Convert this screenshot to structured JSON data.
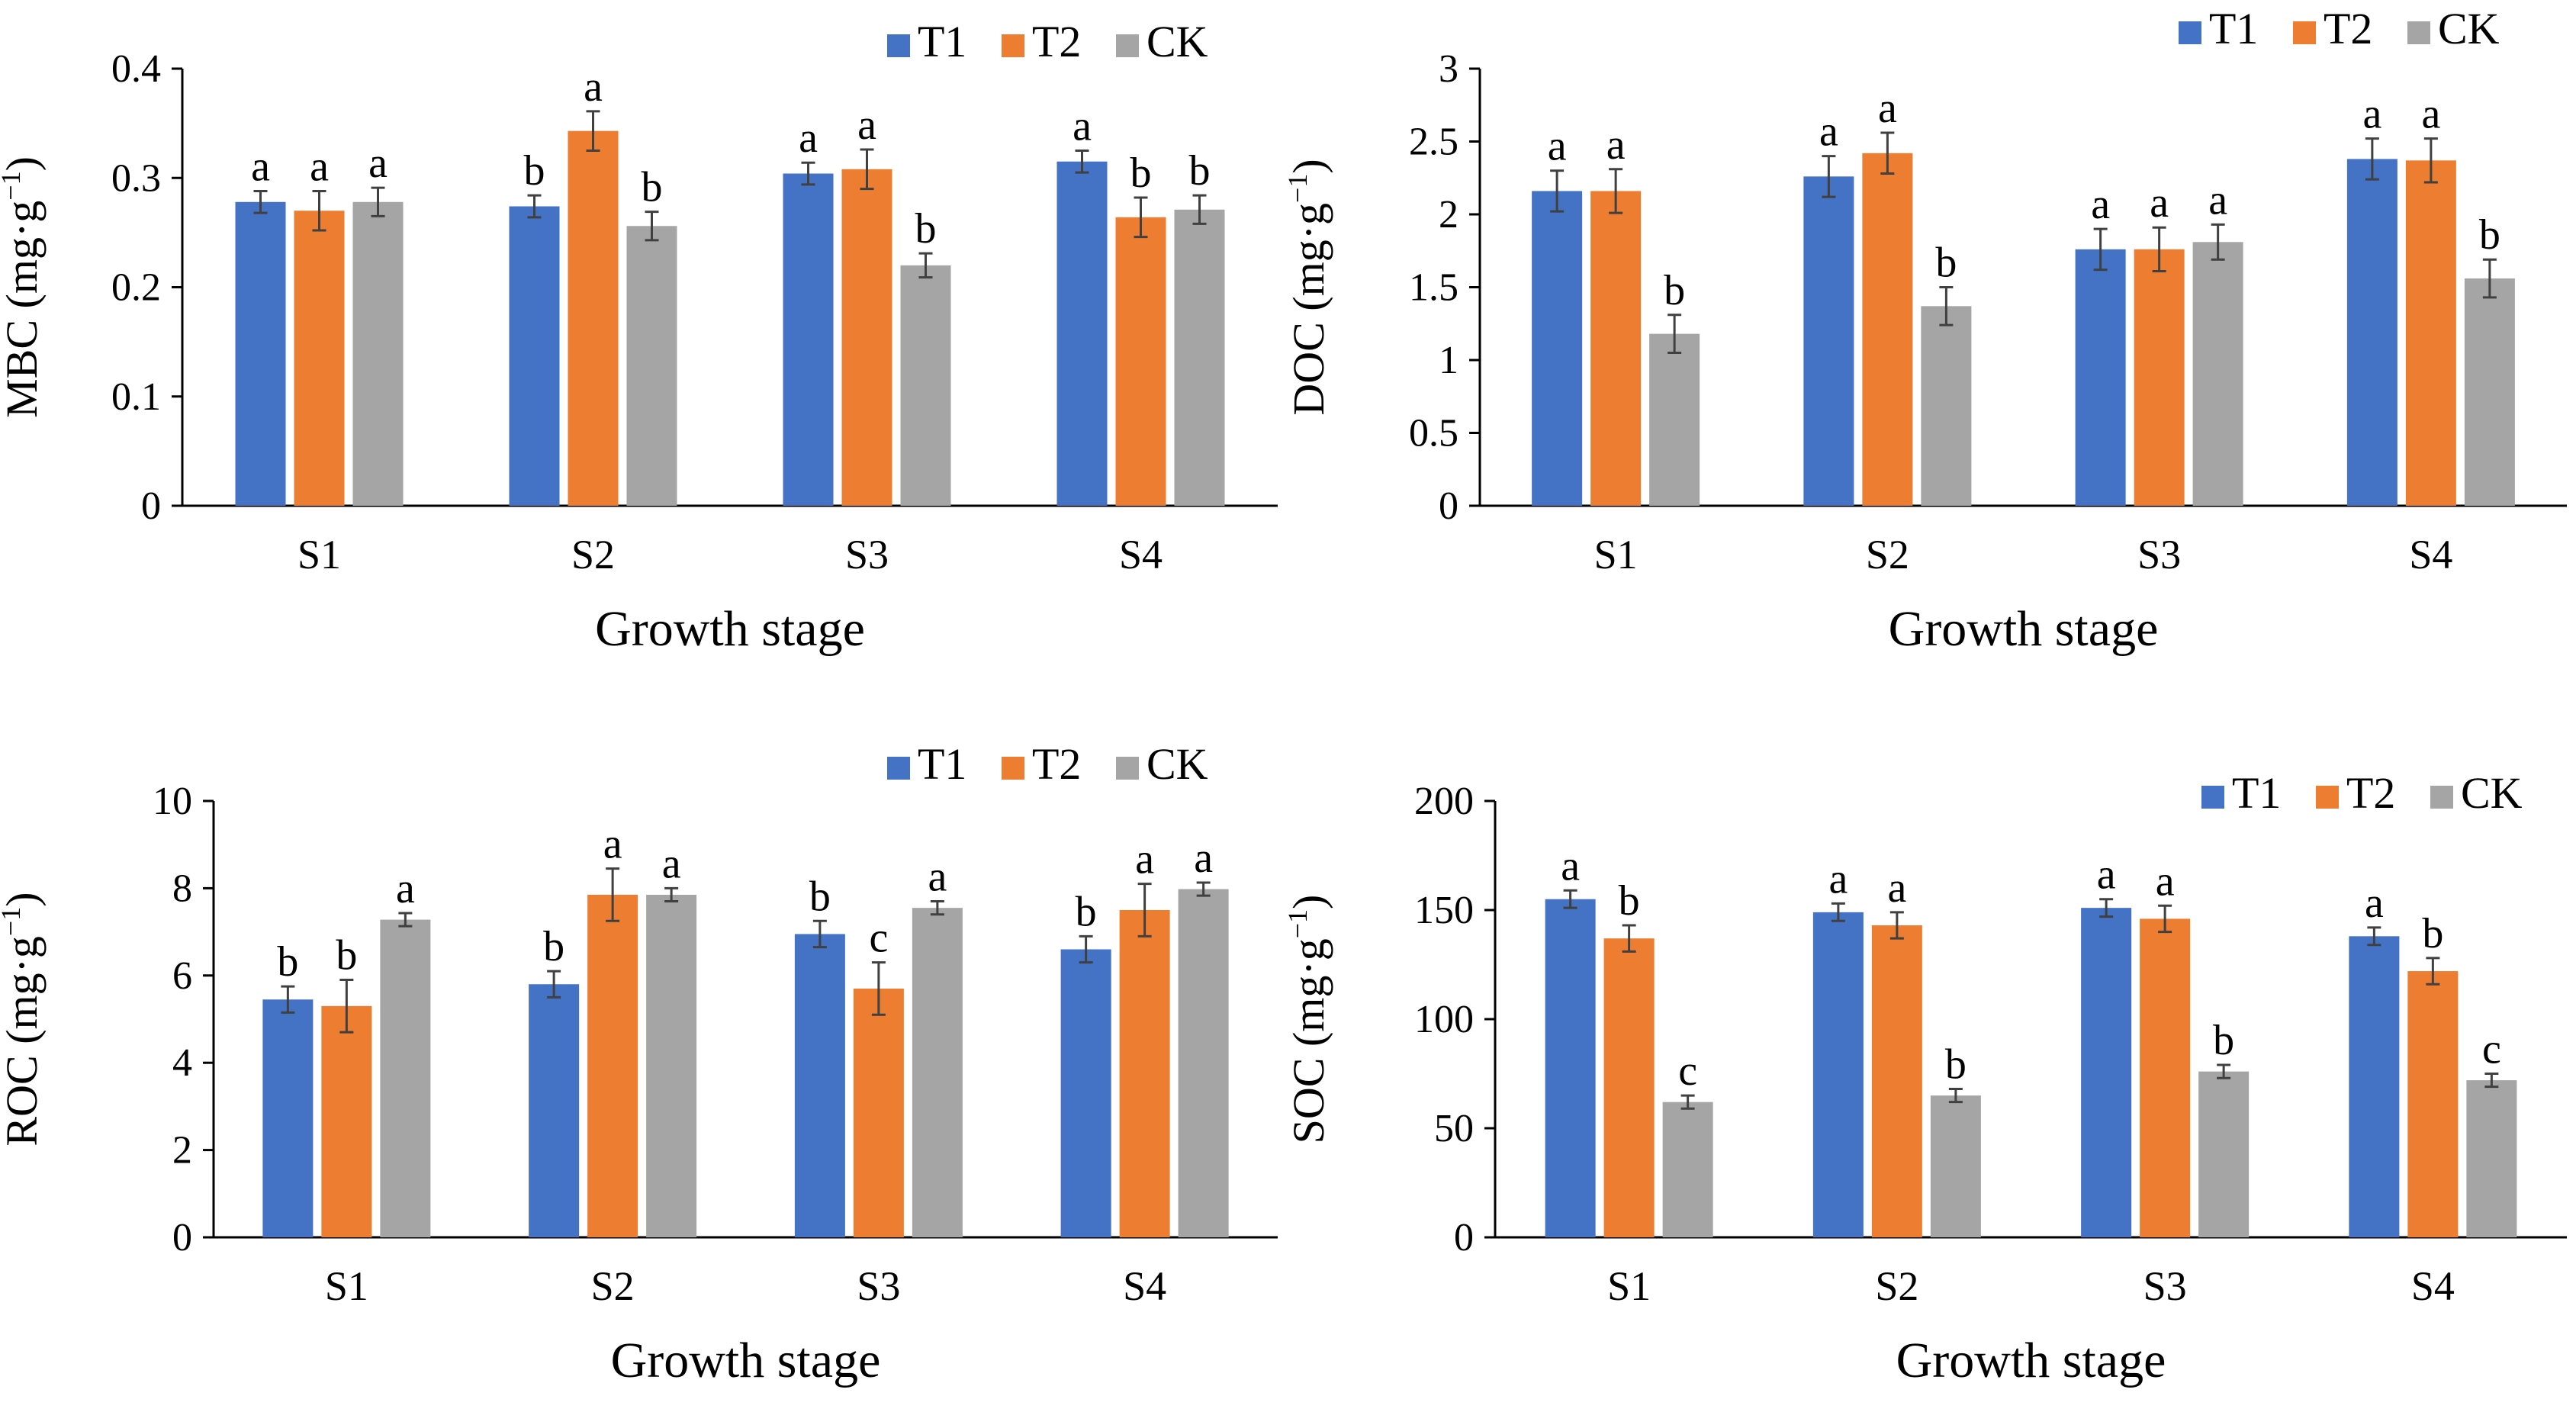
{
  "colors": {
    "T1": "#4472C4",
    "T2": "#ED7D31",
    "CK": "#A5A5A5",
    "axis": "#000000",
    "errorbar": "#404040"
  },
  "chart_data": [
    {
      "id": "mbc",
      "type": "bar",
      "ylabel_main": "MBC (mg·g",
      "ylabel_sup": "−1",
      "ylabel_close": ")",
      "xlabel": "Growth stage",
      "categories": [
        "S1",
        "S2",
        "S3",
        "S4"
      ],
      "ylim": [
        0,
        0.4
      ],
      "yticks": [
        0,
        0.1,
        0.2,
        0.3,
        0.4
      ],
      "ytick_labels": [
        "0",
        "0.1",
        "0.2",
        "0.3",
        "0.4"
      ],
      "legend_position": "top-right",
      "grid": false,
      "series": [
        {
          "name": "T1",
          "values": [
            0.278,
            0.274,
            0.304,
            0.315
          ],
          "errors": [
            0.01,
            0.01,
            0.01,
            0.01
          ],
          "letters": [
            "a",
            "b",
            "a",
            "a"
          ]
        },
        {
          "name": "T2",
          "values": [
            0.27,
            0.343,
            0.308,
            0.264
          ],
          "errors": [
            0.018,
            0.018,
            0.018,
            0.018
          ],
          "letters": [
            "a",
            "a",
            "a",
            "b"
          ]
        },
        {
          "name": "CK",
          "values": [
            0.278,
            0.256,
            0.22,
            0.271
          ],
          "errors": [
            0.013,
            0.013,
            0.011,
            0.013
          ],
          "letters": [
            "a",
            "b",
            "b",
            "b"
          ]
        }
      ]
    },
    {
      "id": "doc",
      "type": "bar",
      "ylabel_main": "DOC (mg·g",
      "ylabel_sup": "−1",
      "ylabel_close": ")",
      "xlabel": "Growth stage",
      "categories": [
        "S1",
        "S2",
        "S3",
        "S4"
      ],
      "ylim": [
        0,
        3
      ],
      "yticks": [
        0,
        0.5,
        1,
        1.5,
        2,
        2.5,
        3
      ],
      "ytick_labels": [
        "0",
        "0.5",
        "1",
        "1.5",
        "2",
        "2.5",
        "3"
      ],
      "legend_position": "top-right",
      "grid": false,
      "series": [
        {
          "name": "T1",
          "values": [
            2.16,
            2.26,
            1.76,
            2.38
          ],
          "errors": [
            0.14,
            0.14,
            0.14,
            0.14
          ],
          "letters": [
            "a",
            "a",
            "a",
            "a"
          ]
        },
        {
          "name": "T2",
          "values": [
            2.16,
            2.42,
            1.76,
            2.37
          ],
          "errors": [
            0.15,
            0.14,
            0.15,
            0.15
          ],
          "letters": [
            "a",
            "a",
            "a",
            "a"
          ]
        },
        {
          "name": "CK",
          "values": [
            1.18,
            1.37,
            1.81,
            1.56
          ],
          "errors": [
            0.13,
            0.13,
            0.12,
            0.13
          ],
          "letters": [
            "b",
            "b",
            "a",
            "b"
          ]
        }
      ]
    },
    {
      "id": "roc",
      "type": "bar",
      "ylabel_main": "ROC (mg·g",
      "ylabel_sup": "−1",
      "ylabel_close": ")",
      "xlabel": "Growth stage",
      "categories": [
        "S1",
        "S2",
        "S3",
        "S4"
      ],
      "ylim": [
        0,
        10
      ],
      "yticks": [
        0,
        2,
        4,
        6,
        8,
        10
      ],
      "ytick_labels": [
        "0",
        "2",
        "4",
        "6",
        "8",
        "10"
      ],
      "legend_position": "top-right",
      "grid": false,
      "series": [
        {
          "name": "T1",
          "values": [
            5.45,
            5.8,
            6.95,
            6.6
          ],
          "errors": [
            0.3,
            0.3,
            0.3,
            0.3
          ],
          "letters": [
            "b",
            "b",
            "b",
            "b"
          ]
        },
        {
          "name": "T2",
          "values": [
            5.3,
            7.85,
            5.7,
            7.5
          ],
          "errors": [
            0.6,
            0.6,
            0.6,
            0.6
          ],
          "letters": [
            "b",
            "a",
            "c",
            "a"
          ]
        },
        {
          "name": "CK",
          "values": [
            7.28,
            7.85,
            7.55,
            7.98
          ],
          "errors": [
            0.15,
            0.15,
            0.15,
            0.15
          ],
          "letters": [
            "a",
            "a",
            "a",
            "a"
          ]
        }
      ]
    },
    {
      "id": "soc",
      "type": "bar",
      "ylabel_main": "SOC (mg·g",
      "ylabel_sup": "−1",
      "ylabel_close": ")",
      "xlabel": "Growth stage",
      "categories": [
        "S1",
        "S2",
        "S3",
        "S4"
      ],
      "ylim": [
        0,
        200
      ],
      "yticks": [
        0,
        50,
        100,
        150,
        200
      ],
      "ytick_labels": [
        "0",
        "50",
        "100",
        "150",
        "200"
      ],
      "legend_position": "top-right",
      "grid": false,
      "series": [
        {
          "name": "T1",
          "values": [
            155,
            149,
            151,
            138
          ],
          "errors": [
            4,
            4,
            4,
            4
          ],
          "letters": [
            "a",
            "a",
            "a",
            "a"
          ]
        },
        {
          "name": "T2",
          "values": [
            137,
            143,
            146,
            122
          ],
          "errors": [
            6,
            6,
            6,
            6
          ],
          "letters": [
            "b",
            "a",
            "a",
            "b"
          ]
        },
        {
          "name": "CK",
          "values": [
            62,
            65,
            76,
            72
          ],
          "errors": [
            3,
            3,
            3,
            3
          ],
          "letters": [
            "c",
            "b",
            "b",
            "c"
          ]
        }
      ]
    }
  ]
}
